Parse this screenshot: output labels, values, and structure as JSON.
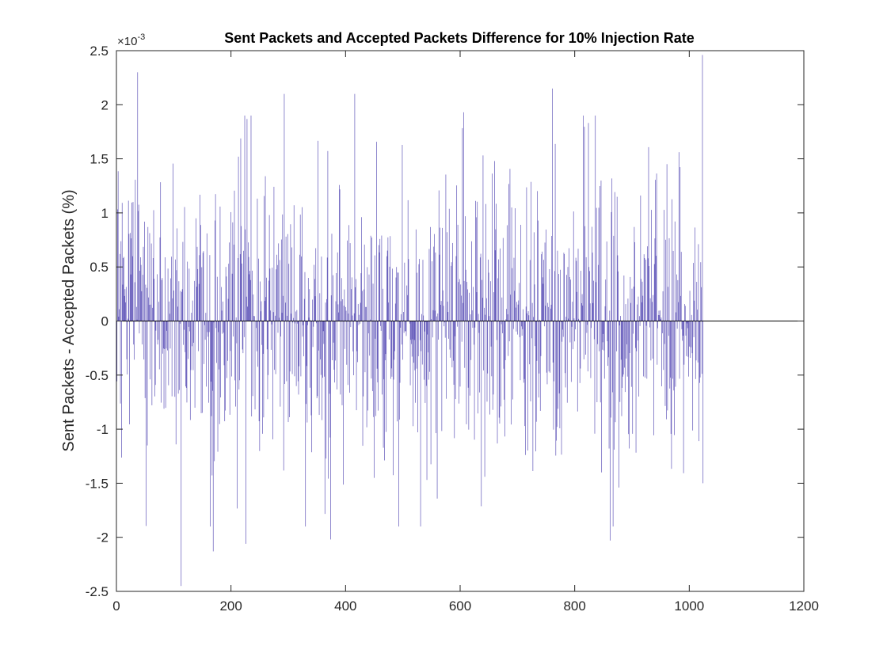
{
  "chart_data": {
    "type": "bar",
    "title": "Sent Packets and Accepted Packets Difference for 10% Injection Rate",
    "xlabel": "",
    "ylabel": "Sent Packets - Accepted Packets (%)",
    "y_exponent_prefix": "×10",
    "y_exponent_power": "-3",
    "xlim": [
      0,
      1200
    ],
    "ylim": [
      -0.0025,
      0.0025
    ],
    "xticks": [
      0,
      200,
      400,
      600,
      800,
      1000,
      1200
    ],
    "xtick_labels": [
      "0",
      "200",
      "400",
      "600",
      "800",
      "1000",
      "1200"
    ],
    "yticks": [
      -0.0025,
      -0.002,
      -0.0015,
      -0.001,
      -0.0005,
      0,
      0.0005,
      0.001,
      0.0015,
      0.002,
      0.0025
    ],
    "ytick_labels": [
      "-2.5",
      "-2",
      "-1.5",
      "-1",
      "-0.5",
      "0",
      "0.5",
      "1",
      "1.5",
      "2",
      "2.5"
    ],
    "grid": false,
    "legend": "none",
    "bar_color": "#4b3fb0",
    "zero_line_color": "#000000",
    "n_points": 1024,
    "notable_values": [
      {
        "x": 36,
        "y": 0.0023
      },
      {
        "x": 112,
        "y": -0.00245
      },
      {
        "x": 168,
        "y": -0.00213
      },
      {
        "x": 225,
        "y": -0.00206
      },
      {
        "x": 292,
        "y": 0.0021
      },
      {
        "x": 373,
        "y": -0.00202
      },
      {
        "x": 415,
        "y": 0.0021
      },
      {
        "x": 605,
        "y": 0.00193
      },
      {
        "x": 760,
        "y": 0.00215
      },
      {
        "x": 861,
        "y": -0.00203
      },
      {
        "x": 1022,
        "y": 0.00246
      },
      {
        "x": 1023,
        "y": -0.0015
      }
    ]
  }
}
